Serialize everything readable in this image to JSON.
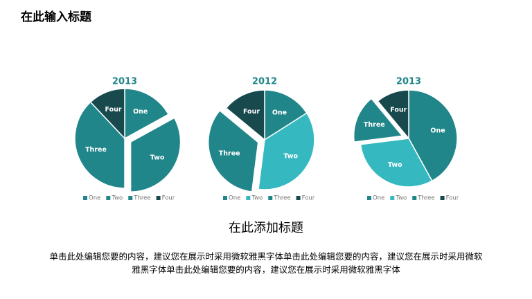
{
  "slide": {
    "title": "在此输入标题",
    "heading": "在此添加标题",
    "body": "单击此处编辑您要的内容，建议您在展示时采用微软雅黑字体单击此处编辑您要的内容，建议您在展示时采用微软雅黑字体单击此处编辑您要的内容，建议您在展示时采用微软雅黑字体"
  },
  "chart_data": [
    {
      "type": "pie",
      "title": "2013",
      "categories": [
        "One",
        "Two",
        "Three",
        "Four"
      ],
      "values": [
        17,
        33,
        38,
        12
      ],
      "colors": [
        "#21868a",
        "#21868a",
        "#21868a",
        "#17494d"
      ],
      "explode": [
        false,
        true,
        false,
        false
      ],
      "legend": "bottom"
    },
    {
      "type": "pie",
      "title": "2012",
      "categories": [
        "One",
        "Two",
        "Three",
        "Four"
      ],
      "values": [
        16,
        36,
        34,
        14
      ],
      "colors": [
        "#21868a",
        "#35b8c0",
        "#21868a",
        "#17494d"
      ],
      "explode": [
        false,
        false,
        true,
        false
      ],
      "legend": "bottom"
    },
    {
      "type": "pie",
      "title": "2013",
      "categories": [
        "One",
        "Two",
        "Three",
        "Four"
      ],
      "values": [
        42,
        31,
        16,
        11
      ],
      "colors": [
        "#21868a",
        "#35b8c0",
        "#21868a",
        "#17494d"
      ],
      "explode": [
        false,
        false,
        true,
        false
      ],
      "legend": "bottom"
    }
  ]
}
